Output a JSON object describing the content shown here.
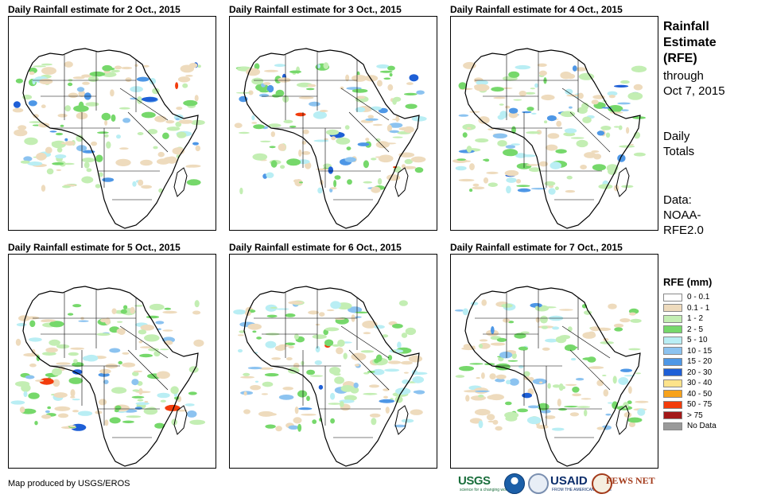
{
  "panels": [
    {
      "title": "Daily Rainfall estimate for 2 Oct., 2015"
    },
    {
      "title": "Daily Rainfall estimate for 3 Oct., 2015"
    },
    {
      "title": "Daily Rainfall estimate for 4 Oct., 2015"
    },
    {
      "title": "Daily Rainfall estimate for 5 Oct., 2015"
    },
    {
      "title": "Daily Rainfall estimate for 6 Oct., 2015"
    },
    {
      "title": "Daily Rainfall estimate for 7 Oct., 2015"
    }
  ],
  "side": {
    "title_line1": "Rainfall",
    "title_line2": "Estimate",
    "title_line3": "(RFE)",
    "through_label": "through",
    "through_date": "Oct 7, 2015",
    "daily_line1": "Daily",
    "daily_line2": "Totals",
    "data_line1": "Data:",
    "data_line2": "NOAA-",
    "data_line3": "RFE2.0"
  },
  "legend": {
    "title": "RFE (mm)",
    "items": [
      {
        "label": "0 - 0.1",
        "color": "#ffffff"
      },
      {
        "label": "0.1 - 1",
        "color": "#eedbbd"
      },
      {
        "label": "1 - 2",
        "color": "#c3eeb3"
      },
      {
        "label": "2 - 5",
        "color": "#76d86b"
      },
      {
        "label": "5 - 10",
        "color": "#b9eef4"
      },
      {
        "label": "10 - 15",
        "color": "#8cc3f0"
      },
      {
        "label": "15 - 20",
        "color": "#4e97e6"
      },
      {
        "label": "20 - 30",
        "color": "#1e5fd6"
      },
      {
        "label": "30 - 40",
        "color": "#fde38b"
      },
      {
        "label": "40 - 50",
        "color": "#f7a21b"
      },
      {
        "label": "50 - 75",
        "color": "#f23c0c"
      },
      {
        "label": "> 75",
        "color": "#a31818"
      },
      {
        "label": "No Data",
        "color": "#9a9a9a"
      }
    ]
  },
  "credit": "Map produced by USGS/EROS",
  "logos": {
    "usgs": "USGS",
    "usgs_tagline": "science for a changing world",
    "usaid": "USAID",
    "usaid_tagline": "FROM THE AMERICAN PEOPLE",
    "fews": "FEWS NET"
  },
  "colors": {
    "border": "#000000",
    "coast": "#000000"
  }
}
